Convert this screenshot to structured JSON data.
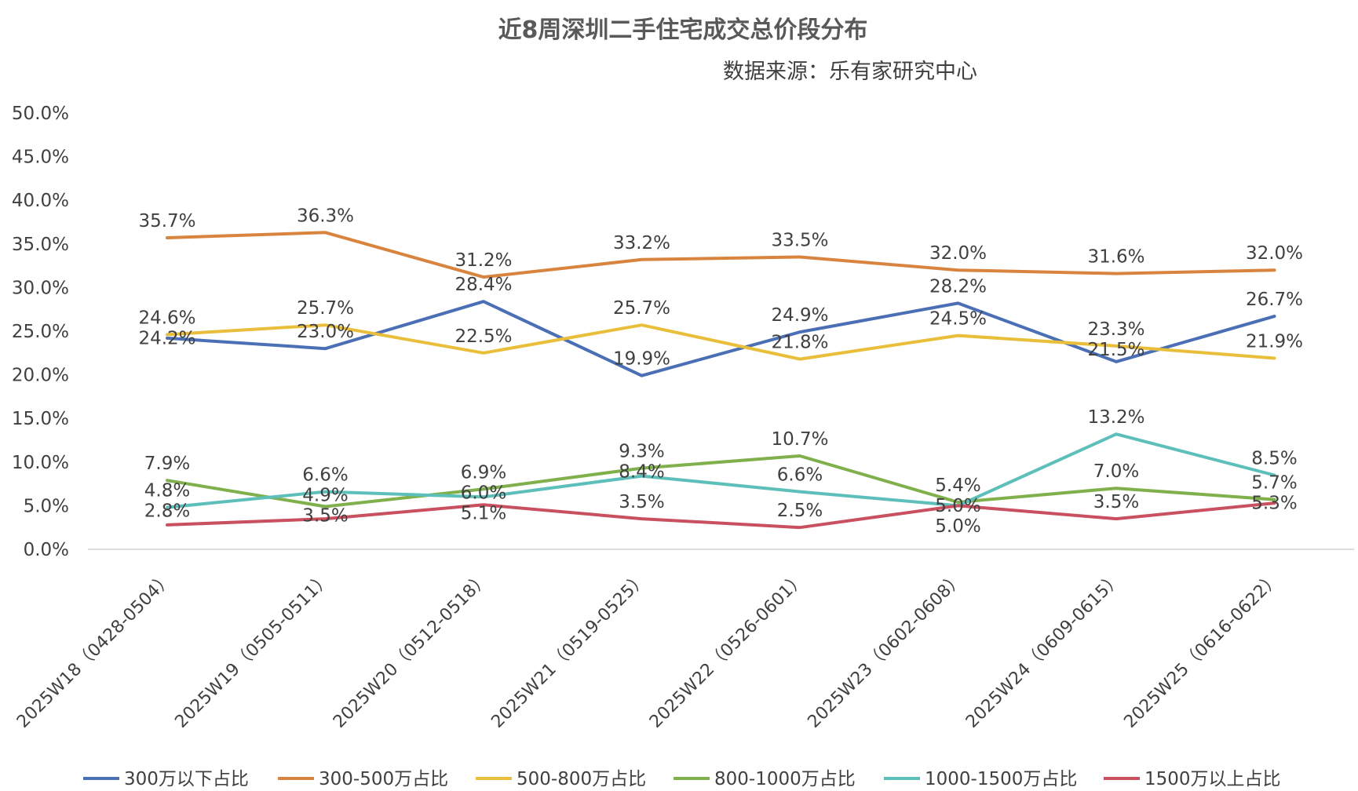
{
  "chart_data": {
    "type": "line",
    "title": "近8周深圳二手住宅成交总价段分布",
    "subtitle": "数据来源：乐有家研究中心",
    "categories": [
      "2025W18（0428-0504）",
      "2025W19（0505-0511）",
      "2025W20（0512-0518）",
      "2025W21（0519-0525）",
      "2025W22（0526-0601）",
      "2025W23（0602-0608）",
      "2025W24（0609-0615）",
      "2025W25（0616-0622）"
    ],
    "ylim": [
      0,
      50
    ],
    "y_ticks": [
      "0.0%",
      "5.0%",
      "10.0%",
      "15.0%",
      "20.0%",
      "25.0%",
      "30.0%",
      "35.0%",
      "40.0%",
      "45.0%",
      "50.0%"
    ],
    "legend_position": "bottom",
    "series": [
      {
        "name": "300万以下占比",
        "color": "#4A6FB5",
        "values": [
          24.2,
          23.0,
          28.4,
          19.9,
          24.9,
          28.2,
          21.5,
          26.7
        ],
        "labels": [
          "24.2%",
          "23.0%",
          "28.4%",
          "19.9%",
          "24.9%",
          "28.2%",
          "21.5%",
          "26.7%"
        ]
      },
      {
        "name": "300-500万占比",
        "color": "#D9843E",
        "values": [
          35.7,
          36.3,
          31.2,
          33.2,
          33.5,
          32.0,
          31.6,
          32.0
        ],
        "labels": [
          "35.7%",
          "36.3%",
          "31.2%",
          "33.2%",
          "33.5%",
          "32.0%",
          "31.6%",
          "32.0%"
        ]
      },
      {
        "name": "500-800万占比",
        "color": "#E9BE3A",
        "values": [
          24.6,
          25.7,
          22.5,
          25.7,
          21.8,
          24.5,
          23.3,
          21.9
        ],
        "labels": [
          "24.6%",
          "25.7%",
          "22.5%",
          "25.7%",
          "21.8%",
          "24.5%",
          "23.3%",
          "21.9%"
        ]
      },
      {
        "name": "800-1000万占比",
        "color": "#7FB04B",
        "values": [
          7.9,
          4.9,
          6.9,
          9.3,
          10.7,
          5.4,
          7.0,
          5.7
        ],
        "labels": [
          "7.9%",
          "4.9%",
          "6.9%",
          "9.3%",
          "10.7%",
          "5.4%",
          "7.0%",
          "5.7%"
        ]
      },
      {
        "name": "1000-1500万占比",
        "color": "#5DBFBA",
        "values": [
          4.8,
          6.6,
          6.0,
          8.4,
          6.6,
          5.0,
          13.2,
          8.5
        ],
        "labels": [
          "4.8%",
          "6.6%",
          "6.0%",
          "8.4%",
          "6.6%",
          "5.0%",
          "13.2%",
          "8.5%"
        ]
      },
      {
        "name": "1500万以上占比",
        "color": "#C9505F",
        "values": [
          2.8,
          3.5,
          5.1,
          3.5,
          2.5,
          5.0,
          3.5,
          5.3
        ],
        "labels": [
          "2.8%",
          "3.5%",
          "5.1%",
          "3.5%",
          "2.5%",
          "5.0%",
          "3.5%",
          "5.3%"
        ]
      }
    ]
  }
}
